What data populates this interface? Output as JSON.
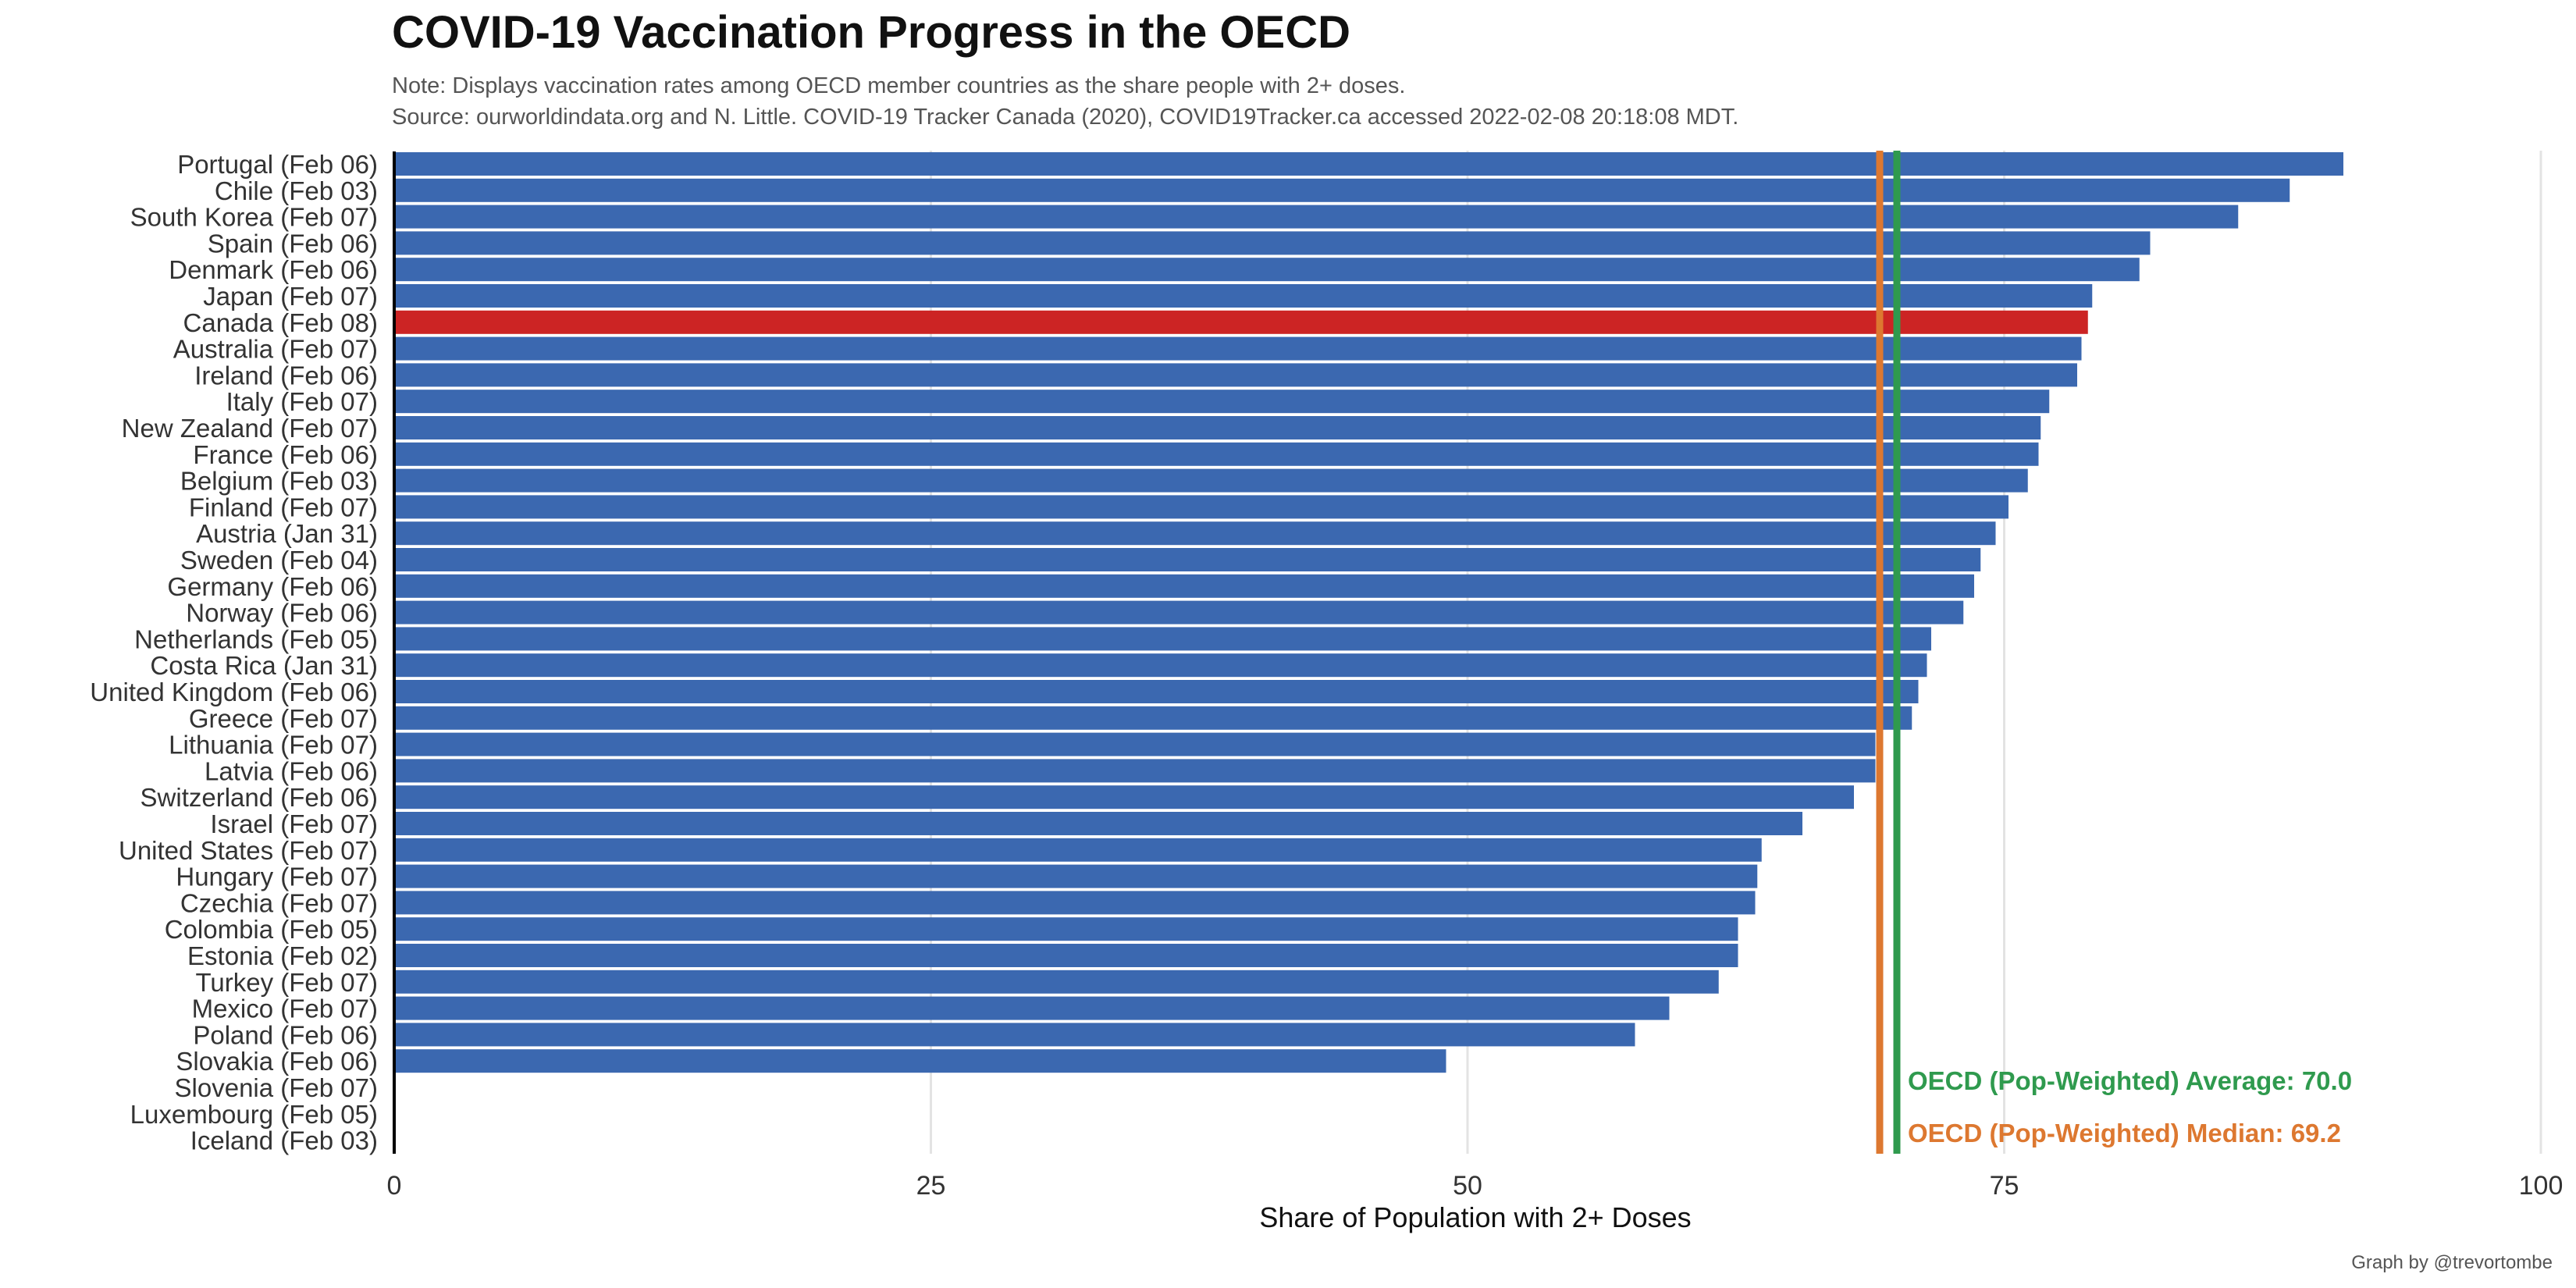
{
  "chart_data": {
    "type": "bar",
    "orientation": "horizontal",
    "title": "COVID-19 Vaccination Progress in the OECD",
    "subtitle_lines": [
      "Note: Displays vaccination rates among OECD member countries as the share people with 2+ doses.",
      "Source: ourworldindata.org and N. Little. COVID-19 Tracker Canada (2020), COVID19Tracker.ca accessed 2022-02-08 20:18:08  MDT."
    ],
    "xlabel": "Share of Population with 2+ Doses",
    "ylabel": "",
    "xlim": [
      0,
      100
    ],
    "xticks": [
      0,
      25,
      50,
      75,
      100
    ],
    "grid": true,
    "categories": [
      "Portugal (Feb 06)",
      "Chile (Feb 03)",
      "South Korea (Feb 07)",
      "Spain (Feb 06)",
      "Denmark (Feb 06)",
      "Japan (Feb 07)",
      "Canada (Feb 08)",
      "Australia (Feb 07)",
      "Ireland (Feb 06)",
      "Italy (Feb 07)",
      "New Zealand (Feb 07)",
      "France (Feb 06)",
      "Belgium (Feb 03)",
      "Finland (Feb 07)",
      "Austria (Jan 31)",
      "Sweden (Feb 04)",
      "Germany (Feb 06)",
      "Norway (Feb 06)",
      "Netherlands (Feb 05)",
      "Costa Rica (Jan 31)",
      "United Kingdom (Feb 06)",
      "Greece (Feb 07)",
      "Lithuania (Feb 07)",
      "Latvia (Feb 06)",
      "Switzerland (Feb 06)",
      "Israel (Feb 07)",
      "United States (Feb 07)",
      "Hungary (Feb 07)",
      "Czechia (Feb 07)",
      "Colombia (Feb 05)",
      "Estonia (Feb 02)",
      "Turkey (Feb 07)",
      "Mexico (Feb 07)",
      "Poland (Feb 06)",
      "Slovakia (Feb 06)",
      "Slovenia (Feb 07)",
      "Luxembourg (Feb 05)",
      "Iceland (Feb 03)"
    ],
    "values": [
      90.8,
      88.3,
      85.9,
      81.8,
      81.3,
      79.1,
      78.9,
      78.6,
      78.4,
      77.1,
      76.7,
      76.6,
      76.1,
      75.2,
      74.6,
      73.9,
      73.6,
      73.1,
      71.6,
      71.4,
      71.0,
      70.7,
      69.0,
      69.0,
      68.0,
      65.6,
      63.7,
      63.5,
      63.4,
      62.6,
      62.6,
      61.7,
      59.4,
      57.8,
      49.0,
      null,
      null,
      null
    ],
    "highlight_category": "Canada (Feb 08)",
    "bar_color": "#3b68b0",
    "highlight_color": "#cc2424",
    "reference_lines": [
      {
        "label": "OECD (Pop-Weighted) Average: 70.0",
        "value": 70.0,
        "color": "#2f9a4e"
      },
      {
        "label": "OECD (Pop-Weighted) Median: 69.2",
        "value": 69.2,
        "color": "#dd7830"
      }
    ]
  },
  "caption": "Graph by @trevortombe"
}
